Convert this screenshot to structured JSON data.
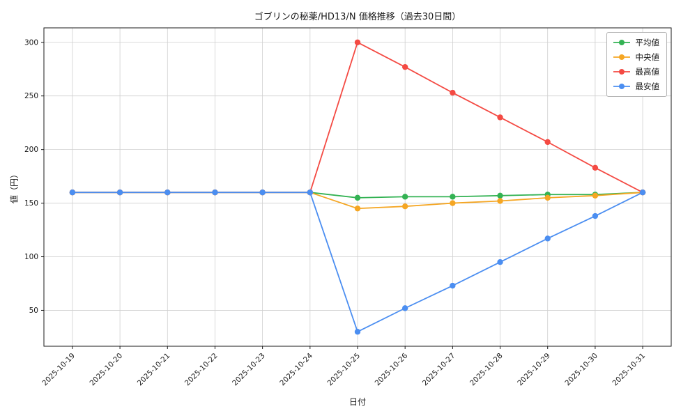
{
  "chart_data": {
    "type": "line",
    "title": "ゴブリンの秘薬/HD13/N 価格推移（過去30日間）",
    "xlabel": "日付",
    "ylabel": "値（円）",
    "categories": [
      "2025-10-19",
      "2025-10-20",
      "2025-10-21",
      "2025-10-22",
      "2025-10-23",
      "2025-10-24",
      "2025-10-25",
      "2025-10-26",
      "2025-10-27",
      "2025-10-28",
      "2025-10-29",
      "2025-10-30",
      "2025-10-31"
    ],
    "yticks": [
      50,
      100,
      150,
      200,
      250,
      300
    ],
    "ylim": [
      16.5,
      313.5
    ],
    "grid": true,
    "legend_position": "upper right",
    "series": [
      {
        "name": "平均値",
        "color": "#33b253",
        "values": [
          160,
          160,
          160,
          160,
          160,
          160,
          155,
          156,
          156,
          157,
          158,
          158,
          160
        ]
      },
      {
        "name": "中央値",
        "color": "#f5a623",
        "values": [
          160,
          160,
          160,
          160,
          160,
          160,
          145,
          147,
          150,
          152,
          155,
          157,
          160
        ]
      },
      {
        "name": "最高値",
        "color": "#f44a43",
        "values": [
          160,
          160,
          160,
          160,
          160,
          160,
          300,
          277,
          253,
          230,
          207,
          183,
          160
        ]
      },
      {
        "name": "最安値",
        "color": "#4b8ef1",
        "values": [
          160,
          160,
          160,
          160,
          160,
          160,
          30,
          52,
          73,
          95,
          117,
          138,
          160
        ]
      }
    ]
  }
}
